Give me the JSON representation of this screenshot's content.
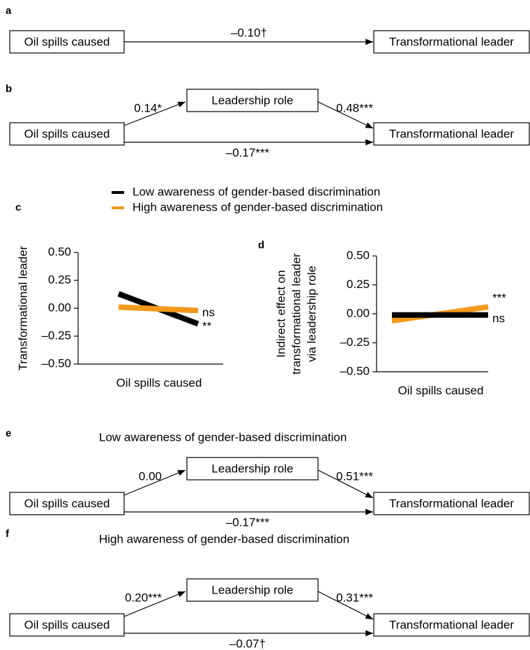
{
  "panels": {
    "a": {
      "letter": "a",
      "source": "Oil spills caused",
      "target": "Transformational leader",
      "direct": "–0.10†"
    },
    "b": {
      "letter": "b",
      "source": "Oil spills caused",
      "mediator": "Leadership role",
      "target": "Transformational leader",
      "a_path": "0.14*",
      "b_path": "0.48***",
      "direct": "–0.17***"
    },
    "e": {
      "letter": "e",
      "heading": "Low awareness of gender-based discrimination",
      "source": "Oil spills caused",
      "mediator": "Leadership role",
      "target": "Transformational leader",
      "a_path": "0.00",
      "b_path": "0.51***",
      "direct": "–0.17***"
    },
    "f": {
      "letter": "f",
      "heading": "High awareness of gender-based discrimination",
      "source": "Oil spills caused",
      "mediator": "Leadership role",
      "target": "Transformational leader",
      "a_path": "0.20***",
      "b_path": "0.31***",
      "direct": "–0.07†"
    }
  },
  "chart_data": [
    {
      "type": "line",
      "letter": "c",
      "x_label": "Oil spills caused",
      "y_label_lines": [
        "Transformational leader"
      ],
      "ylim": [
        -0.5,
        0.5
      ],
      "yticks": [
        {
          "value": 0.5,
          "label": "0.50"
        },
        {
          "value": 0.25,
          "label": "0.25"
        },
        {
          "value": 0,
          "label": "0.00"
        },
        {
          "value": -0.25,
          "label": "–0.25"
        },
        {
          "value": -0.5,
          "label": "–0.50"
        }
      ],
      "series": [
        {
          "name": "Low awareness of gender-based discrimination",
          "color": "#000000",
          "values": [
            0.13,
            -0.14
          ],
          "end_label": "**"
        },
        {
          "name": "High awareness of gender-based discrimination",
          "color": "#f39a1e",
          "values": [
            0.01,
            -0.02
          ],
          "end_label": "ns"
        }
      ]
    },
    {
      "type": "line",
      "letter": "d",
      "x_label": "Oil spills caused",
      "y_label_lines": [
        "Indirect effect on",
        "transformational leader",
        "via leadership role"
      ],
      "ylim": [
        -0.5,
        0.5
      ],
      "yticks": [
        {
          "value": 0.5,
          "label": "0.50"
        },
        {
          "value": 0.25,
          "label": "0.25"
        },
        {
          "value": 0,
          "label": "0.00"
        },
        {
          "value": -0.25,
          "label": "–0.25"
        },
        {
          "value": -0.5,
          "label": "–0.50"
        }
      ],
      "series": [
        {
          "color": "#f39a1e",
          "values": [
            -0.06,
            0.06
          ],
          "end_label": "***"
        },
        {
          "color": "#000000",
          "values": [
            -0.01,
            -0.01
          ],
          "end_label": "ns"
        }
      ]
    }
  ]
}
